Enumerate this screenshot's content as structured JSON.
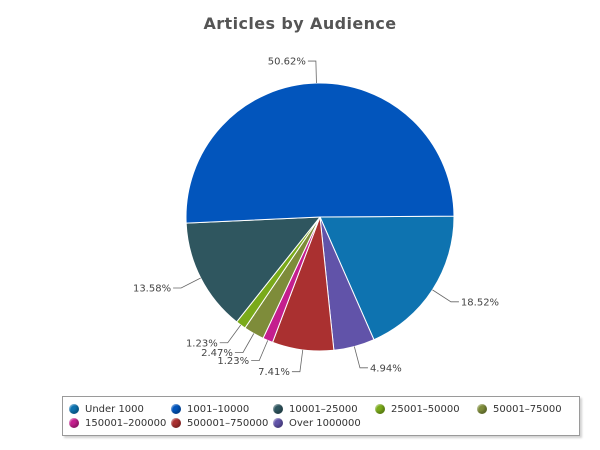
{
  "chart_data": {
    "type": "pie",
    "title": "Articles by Audience",
    "slices": [
      {
        "label": "Under 1000",
        "value": 18.52,
        "display": "18.52%",
        "color": "#0e73b0"
      },
      {
        "label": "Over 1000000",
        "value": 4.94,
        "display": "4.94%",
        "color": "#6153a9"
      },
      {
        "label": "500001–750000",
        "value": 7.41,
        "display": "7.41%",
        "color": "#aa3030"
      },
      {
        "label": "150001–200000",
        "value": 1.23,
        "display": "1.23%",
        "color": "#c41f8e"
      },
      {
        "label": "50001–75000",
        "value": 2.47,
        "display": "2.47%",
        "color": "#7e8c3a"
      },
      {
        "label": "25001–50000",
        "value": 1.23,
        "display": "1.23%",
        "color": "#7aaa1a"
      },
      {
        "label": "10001–25000",
        "value": 13.58,
        "display": "13.58%",
        "color": "#2f565f"
      },
      {
        "label": "1001–10000",
        "value": 50.62,
        "display": "50.62%",
        "color": "#0255bc"
      }
    ],
    "legend": {
      "placement": "bottom",
      "entries": [
        {
          "label": "Under 1000",
          "color": "#0e73b0"
        },
        {
          "label": "1001–10000",
          "color": "#0255bc"
        },
        {
          "label": "10001–25000",
          "color": "#2f565f"
        },
        {
          "label": "25001–50000",
          "color": "#7aaa1a"
        },
        {
          "label": "50001–75000",
          "color": "#7e8c3a"
        },
        {
          "label": "150001–200000",
          "color": "#c41f8e"
        },
        {
          "label": "500001–750000",
          "color": "#aa3030"
        },
        {
          "label": "Over 1000000",
          "color": "#6153a9"
        }
      ]
    }
  }
}
